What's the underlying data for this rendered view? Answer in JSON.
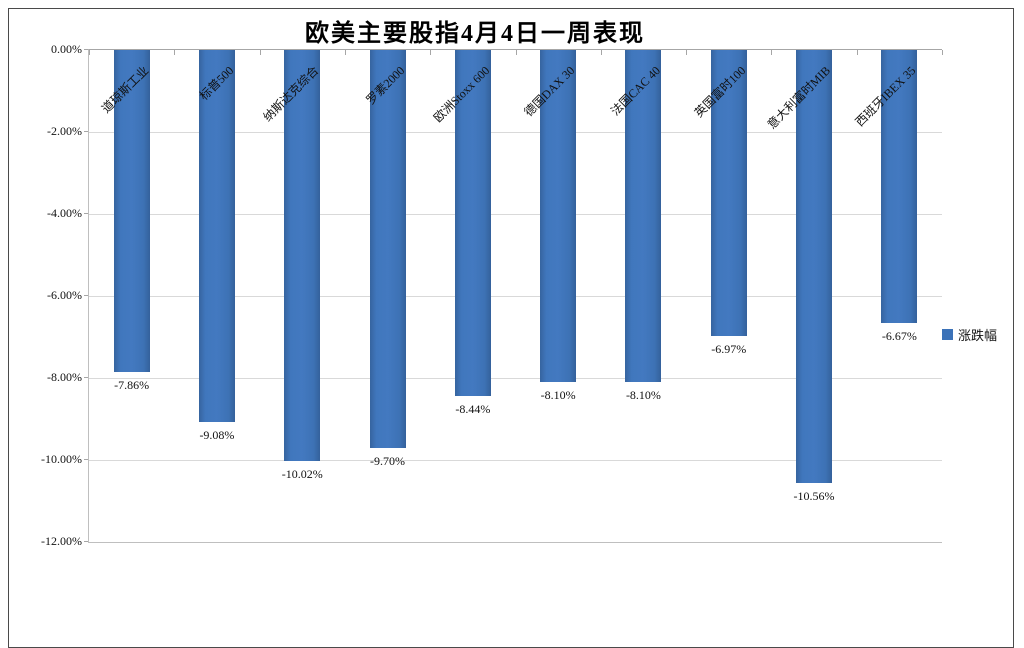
{
  "chart_data": {
    "type": "bar",
    "title": "欧美主要股指4月4日一周表现",
    "categories": [
      "道琼斯工业",
      "标普500",
      "纳斯达克综合",
      "罗素2000",
      "欧洲Stoxx 600",
      "德国DAX 30",
      "法国CAC 40",
      "英国富时100",
      "意大利富时MIB",
      "西班牙IBEX 35"
    ],
    "series": [
      {
        "name": "涨跌幅",
        "values": [
          -7.86,
          -9.08,
          -10.02,
          -9.7,
          -8.44,
          -8.1,
          -8.1,
          -6.97,
          -10.56,
          -6.67
        ]
      }
    ],
    "data_labels": [
      "-7.86%",
      "-9.08%",
      "-10.02%",
      "-9.70%",
      "-8.44%",
      "-8.10%",
      "-8.10%",
      "-6.97%",
      "-10.56%",
      "-6.67%"
    ],
    "xlabel": "",
    "ylabel": "",
    "ylim": [
      -12,
      0
    ],
    "ytick_labels": [
      "0.00%",
      "-2.00%",
      "-4.00%",
      "-6.00%",
      "-8.00%",
      "-10.00%",
      "-12.00%"
    ],
    "ytick_values": [
      0,
      -2,
      -4,
      -6,
      -8,
      -10,
      -12
    ],
    "grid": true,
    "legend": {
      "position": "right",
      "label": "涨跌幅"
    },
    "colors": {
      "bar": "#3b72b8",
      "gridline": "#d9d9d9",
      "axis_line": "#a6a6a6",
      "frame_border": "#4a4a4a",
      "text": "#111111"
    }
  }
}
